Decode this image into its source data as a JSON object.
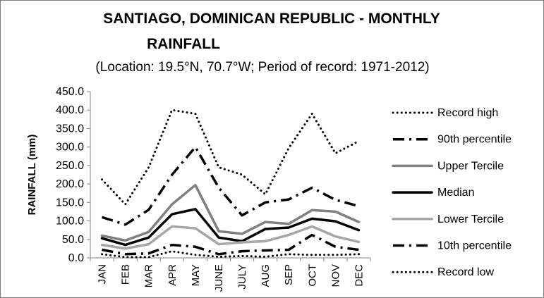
{
  "chart_data": {
    "type": "line",
    "title_line1": "SANTIAGO, DOMINICAN REPUBLIC - MONTHLY",
    "title_line2": "RAINFALL",
    "subtitle": "(Location: 19.5°N, 70.7°W; Period of record: 1971-2012)",
    "xlabel": "",
    "ylabel": "RAINFALL (mm)",
    "ylim": [
      0,
      450
    ],
    "yticks": [
      "0.0",
      "50.0",
      "100.0",
      "150.0",
      "200.0",
      "250.0",
      "300.0",
      "350.0",
      "400.0",
      "450.0"
    ],
    "grid": false,
    "legend_position": "right",
    "categories": [
      "JAN",
      "FEB",
      "MAR",
      "APR",
      "MAY",
      "JUNE",
      "JULY",
      "AUG",
      "SEP",
      "OCT",
      "NOV",
      "DEC"
    ],
    "series": [
      {
        "name": "Record high",
        "color": "#000000",
        "style": "dotted",
        "values": [
          212,
          145,
          245,
          400,
          390,
          245,
          225,
          172,
          297,
          390,
          283,
          316
        ]
      },
      {
        "name": "90th percentile",
        "color": "#000000",
        "style": "dashdot",
        "values": [
          110,
          90,
          130,
          225,
          300,
          190,
          115,
          150,
          158,
          190,
          157,
          140
        ]
      },
      {
        "name": "Upper Tercile",
        "color": "#808080",
        "style": "solid",
        "values": [
          60,
          47,
          70,
          145,
          197,
          72,
          65,
          97,
          92,
          129,
          125,
          97
        ]
      },
      {
        "name": "Median",
        "color": "#000000",
        "style": "solid",
        "values": [
          53,
          35,
          55,
          118,
          132,
          55,
          45,
          78,
          82,
          106,
          99,
          75
        ]
      },
      {
        "name": "Lower Tercile",
        "color": "#a6a6a6",
        "style": "solid",
        "values": [
          35,
          25,
          37,
          85,
          80,
          37,
          42,
          45,
          62,
          85,
          58,
          43
        ]
      },
      {
        "name": "10th percentile",
        "color": "#000000",
        "style": "dashdot",
        "values": [
          22,
          10,
          12,
          35,
          30,
          10,
          18,
          20,
          22,
          62,
          30,
          22
        ]
      },
      {
        "name": "Record low",
        "color": "#000000",
        "style": "dotted",
        "values": [
          10,
          2,
          2,
          18,
          8,
          3,
          5,
          3,
          10,
          8,
          8,
          10
        ]
      }
    ]
  }
}
